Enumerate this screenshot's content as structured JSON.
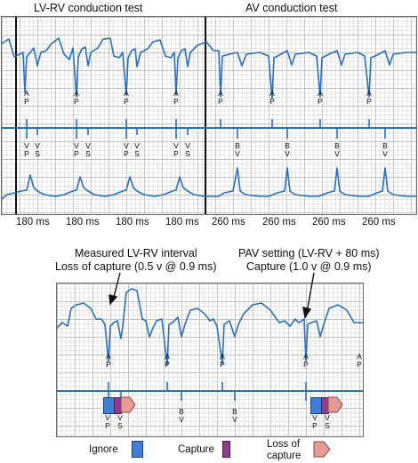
{
  "titles": {
    "left": "LV-RV conduction test",
    "right": "AV conduction test"
  },
  "markers": {
    "ap": [
      "A",
      "P"
    ],
    "vp": [
      "V",
      "P"
    ],
    "vs": [
      "V",
      "S"
    ],
    "bv": [
      "B",
      "V"
    ]
  },
  "intervals": [
    "180 ms",
    "180 ms",
    "180 ms",
    "180 ms",
    "260 ms",
    "260 ms",
    "260 ms",
    "260 ms"
  ],
  "annotations": {
    "left": [
      "Measured LV-RV interval",
      "Loss of capture (0.5 v @ 0.9 ms)"
    ],
    "right": [
      "PAV setting (LV-RV + 80 ms)",
      "Capture (1.0 v @ 0.9 ms)"
    ]
  },
  "legend": [
    {
      "label": "Ignore",
      "color": "#3d7fd9"
    },
    {
      "label": "Capture",
      "color": "#8e3c8c"
    },
    {
      "label": "Loss of\ncapture",
      "color": "#e79b92"
    }
  ],
  "colors": {
    "trace": "#2a6fbd",
    "ignore": "#3d7fd9",
    "capture": "#8e3c8c",
    "loss": "#e79b92"
  }
}
